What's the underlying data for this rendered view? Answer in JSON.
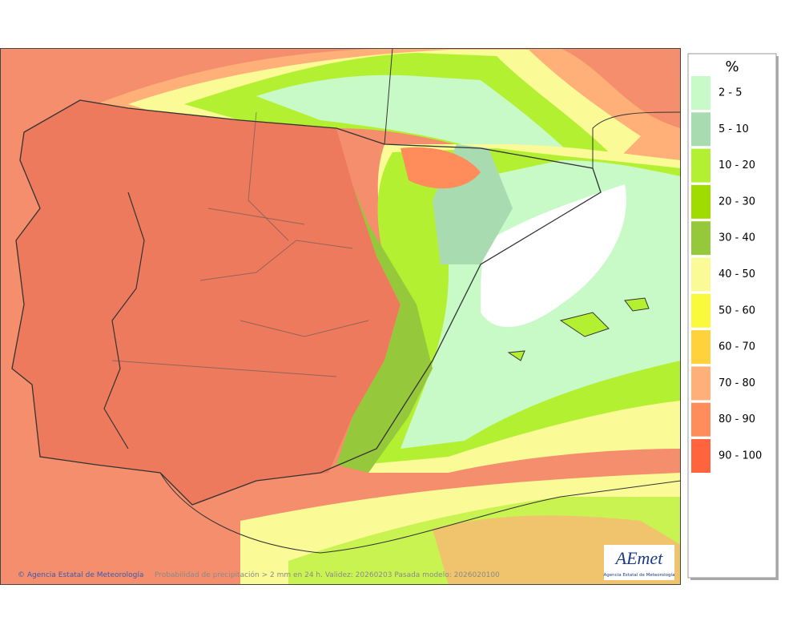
{
  "legend": {
    "title": "%",
    "items": [
      {
        "label": "2 - 5",
        "color": "#c8fac8"
      },
      {
        "label": "5 - 10",
        "color": "#a8dcb0"
      },
      {
        "label": "10 - 20",
        "color": "#b4f032"
      },
      {
        "label": "20 - 30",
        "color": "#a0dc00"
      },
      {
        "label": "30 - 40",
        "color": "#96c83c"
      },
      {
        "label": "40 - 50",
        "color": "#fafa96"
      },
      {
        "label": "50 - 60",
        "color": "#fafa3c"
      },
      {
        "label": "60 - 70",
        "color": "#ffd23c"
      },
      {
        "label": "70 - 80",
        "color": "#ffaf78"
      },
      {
        "label": "80 - 90",
        "color": "#ff8c5a"
      },
      {
        "label": "90 - 100",
        "color": "#ff643c"
      }
    ]
  },
  "footer": {
    "credit": "© Agencia Estatal de Meteorología",
    "caption": "Probabilidad de precipitación > 2 mm en 24 h. Validez: 20260203 Pasada modelo: 2026020100"
  },
  "logo": {
    "name": "AEmet",
    "subtitle": "Agencia Estatal de Meteorología"
  }
}
